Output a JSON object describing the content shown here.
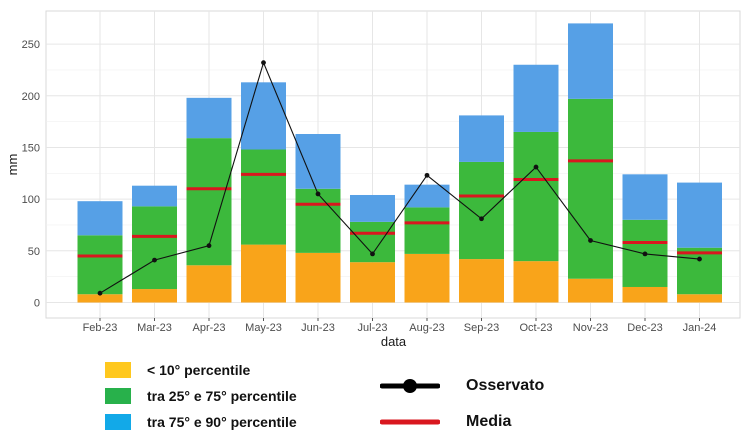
{
  "chart_data": {
    "type": "bar",
    "xlabel": "data",
    "ylabel": "mm",
    "ylim": [
      -15,
      282
    ],
    "yticks": [
      0,
      50,
      100,
      150,
      200,
      250
    ],
    "categories": [
      "Feb-23",
      "Mar-23",
      "Apr-23",
      "May-23",
      "Jun-23",
      "Jul-23",
      "Aug-23",
      "Sep-23",
      "Oct-23",
      "Nov-23",
      "Dec-23",
      "Jan-24"
    ],
    "stack_tops": {
      "p10": [
        8,
        13,
        36,
        56,
        48,
        39,
        47,
        42,
        40,
        23,
        15,
        8
      ],
      "p75": [
        65,
        93,
        159,
        148,
        110,
        78,
        92,
        136,
        165,
        197,
        80,
        53
      ],
      "p90": [
        98,
        113,
        198,
        213,
        163,
        104,
        114,
        181,
        230,
        270,
        124,
        116
      ]
    },
    "media": [
      45,
      64,
      110,
      124,
      95,
      67,
      77,
      103,
      119,
      137,
      58,
      48
    ],
    "osservato": [
      9,
      41,
      55,
      232,
      105,
      47,
      123,
      81,
      131,
      60,
      47,
      42
    ],
    "grid": true,
    "colors": {
      "p10": "#f9a41a",
      "p25_75": "#3cb93c",
      "p75_90": "#56a0e6",
      "media": "#d9171f",
      "osservato": "#111111"
    },
    "legend": [
      {
        "label": "< 10° percentile",
        "color": "#ffc81e"
      },
      {
        "label": "tra 25° e 75° percentile",
        "color": "#28b14b"
      },
      {
        "label": "tra 75° e 90° percentile",
        "color": "#12a9e8"
      }
    ],
    "legend_right": [
      {
        "label": "Osservato",
        "kind": "line-marker",
        "color": "#000000"
      },
      {
        "label": "Media",
        "kind": "line",
        "color": "#d9171f"
      }
    ]
  }
}
